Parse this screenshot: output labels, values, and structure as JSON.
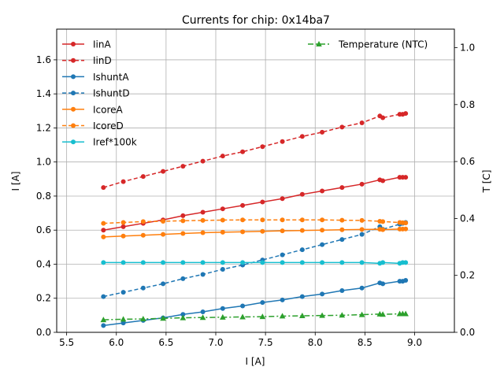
{
  "chart_data": {
    "type": "line",
    "title": "Currents for chip: 0x14ba7",
    "xlabel": "I [A]",
    "ylabel": "I [A]",
    "y2label": "T [C]",
    "xlim": [
      5.4,
      9.4
    ],
    "ylim": [
      0.0,
      1.78
    ],
    "y2lim": [
      0.0,
      1.065
    ],
    "xticks": [
      "5.5",
      "6.0",
      "6.5",
      "7.0",
      "7.5",
      "8.0",
      "8.5",
      "9.0"
    ],
    "yticks": [
      "0.0",
      "0.2",
      "0.4",
      "0.6",
      "0.8",
      "1.0",
      "1.2",
      "1.4",
      "1.6"
    ],
    "y2ticks": [
      "0.0",
      "0.2",
      "0.4",
      "0.6",
      "0.8",
      "1.0"
    ],
    "grid": true,
    "legend_left_position": "upper-left",
    "legend_right_position": "upper-right",
    "x": [
      5.87,
      6.07,
      6.27,
      6.47,
      6.67,
      6.87,
      7.07,
      7.27,
      7.47,
      7.67,
      7.87,
      8.07,
      8.27,
      8.47,
      8.65,
      8.68,
      8.85,
      8.88,
      8.91
    ],
    "series": [
      {
        "name": "IinA",
        "color": "#d62728",
        "dash": false,
        "marker": "circle",
        "axis": "left",
        "values": [
          0.6,
          0.62,
          0.64,
          0.66,
          0.685,
          0.705,
          0.725,
          0.745,
          0.765,
          0.785,
          0.81,
          0.83,
          0.85,
          0.87,
          0.895,
          0.89,
          0.91,
          0.91,
          0.91
        ]
      },
      {
        "name": "IinD",
        "color": "#d62728",
        "dash": true,
        "marker": "circle",
        "axis": "left",
        "values": [
          0.85,
          0.885,
          0.915,
          0.945,
          0.975,
          1.005,
          1.035,
          1.06,
          1.09,
          1.12,
          1.15,
          1.175,
          1.205,
          1.23,
          1.27,
          1.26,
          1.28,
          1.28,
          1.285
        ]
      },
      {
        "name": "IshuntA",
        "color": "#1f77b4",
        "dash": false,
        "marker": "circle",
        "axis": "left",
        "values": [
          0.04,
          0.055,
          0.07,
          0.085,
          0.105,
          0.12,
          0.14,
          0.155,
          0.175,
          0.19,
          0.21,
          0.225,
          0.245,
          0.26,
          0.29,
          0.285,
          0.3,
          0.3,
          0.305
        ]
      },
      {
        "name": "IshuntD",
        "color": "#1f77b4",
        "dash": true,
        "marker": "circle",
        "axis": "left",
        "values": [
          0.21,
          0.235,
          0.26,
          0.285,
          0.315,
          0.34,
          0.37,
          0.395,
          0.425,
          0.455,
          0.485,
          0.515,
          0.545,
          0.575,
          0.62,
          0.605,
          0.635,
          0.64,
          0.645
        ]
      },
      {
        "name": "IcoreA",
        "color": "#ff7f0e",
        "dash": false,
        "marker": "circle",
        "axis": "left",
        "values": [
          0.56,
          0.565,
          0.57,
          0.575,
          0.58,
          0.585,
          0.588,
          0.59,
          0.593,
          0.596,
          0.598,
          0.6,
          0.602,
          0.604,
          0.605,
          0.603,
          0.606,
          0.606,
          0.607
        ]
      },
      {
        "name": "IcoreD",
        "color": "#ff7f0e",
        "dash": true,
        "marker": "circle",
        "axis": "left",
        "values": [
          0.64,
          0.645,
          0.65,
          0.652,
          0.655,
          0.657,
          0.659,
          0.66,
          0.66,
          0.66,
          0.66,
          0.66,
          0.658,
          0.657,
          0.652,
          0.65,
          0.645,
          0.643,
          0.642
        ]
      },
      {
        "name": "Iref*100k",
        "color": "#17becf",
        "dash": false,
        "marker": "circle",
        "axis": "left",
        "values": [
          0.41,
          0.41,
          0.41,
          0.41,
          0.41,
          0.41,
          0.41,
          0.41,
          0.41,
          0.41,
          0.41,
          0.41,
          0.41,
          0.41,
          0.405,
          0.41,
          0.405,
          0.41,
          0.41
        ]
      },
      {
        "name": "Temperature (NTC)",
        "color": "#2ca02c",
        "dash": "dashdot",
        "marker": "triangle",
        "axis": "right",
        "values": [
          0.044,
          0.046,
          0.047,
          0.049,
          0.051,
          0.052,
          0.053,
          0.054,
          0.055,
          0.057,
          0.058,
          0.059,
          0.06,
          0.062,
          0.064,
          0.063,
          0.065,
          0.065,
          0.065
        ]
      }
    ]
  }
}
